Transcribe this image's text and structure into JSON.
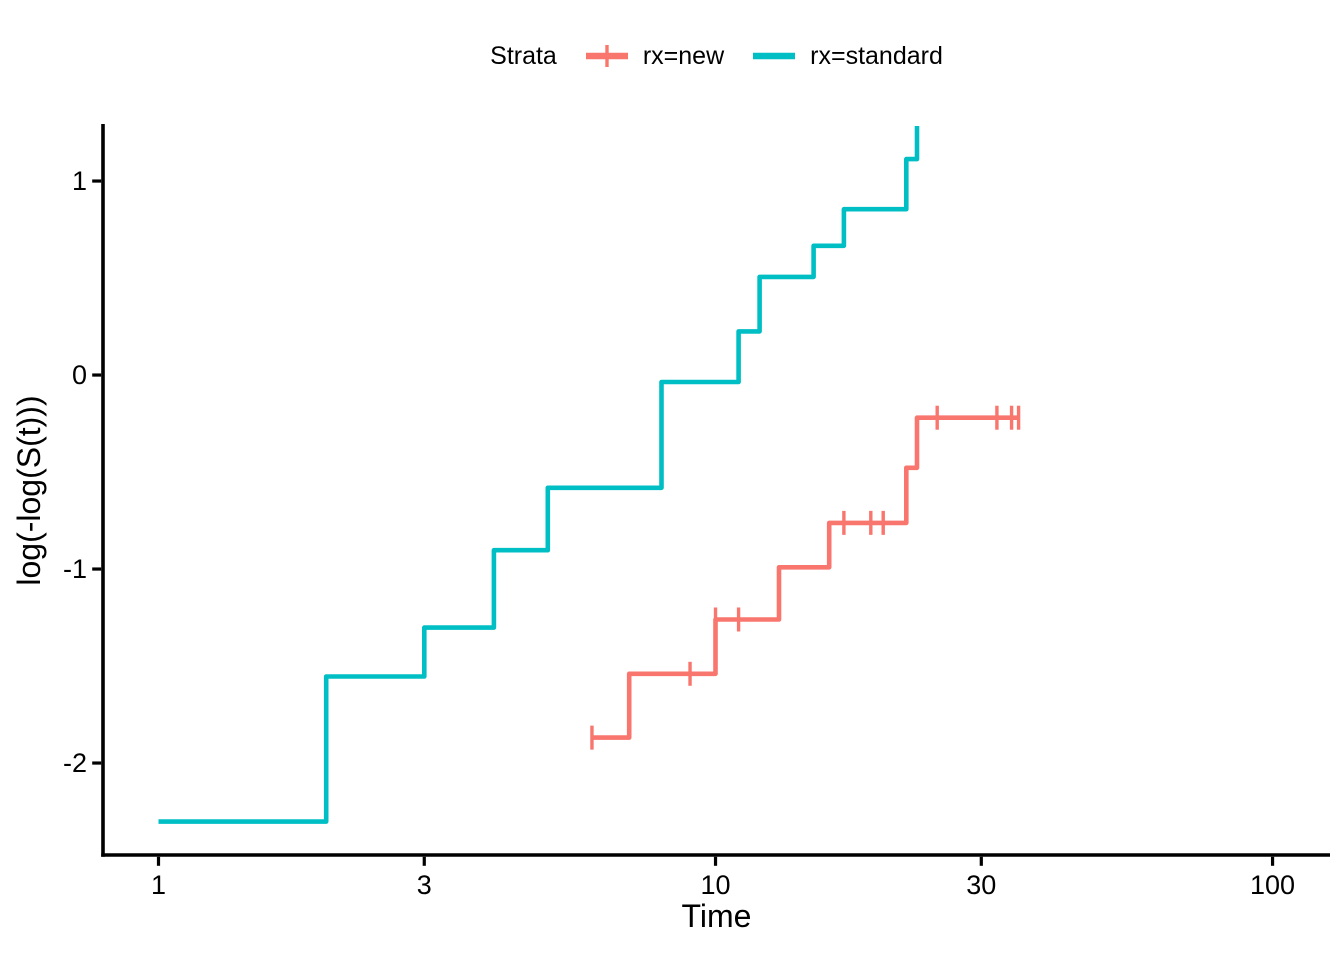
{
  "legend": {
    "title": "Strata",
    "items": [
      {
        "label": "rx=new",
        "color": "#F8766D",
        "marker": "line-with-plus"
      },
      {
        "label": "rx=standard",
        "color": "#00BFC4",
        "marker": "line"
      }
    ]
  },
  "chart_data": {
    "type": "line",
    "subtype": "kaplan-meier-step-cloglog",
    "title": "",
    "xlabel": "Time",
    "ylabel": "log(-log(S(t)))",
    "x_scale": "log10",
    "xlim": [
      0.795,
      126.8
    ],
    "ylim": [
      -2.474,
      1.294
    ],
    "x_ticks": [
      1,
      3,
      10,
      30,
      100
    ],
    "y_ticks": [
      -2,
      -1,
      0,
      1
    ],
    "grid": false,
    "legend_position": "top",
    "axis_color": "#000000",
    "series": [
      {
        "name": "rx=new",
        "color": "#F8766D",
        "steps": [
          [
            6,
            -1.869
          ],
          [
            7,
            -1.54
          ],
          [
            10,
            -1.26
          ],
          [
            13,
            -0.991
          ],
          [
            16,
            -0.762
          ],
          [
            22,
            -0.478
          ],
          [
            23,
            -0.22
          ]
        ],
        "end_time": 35,
        "rise_to_top_at_end": false,
        "censor_marks": [
          [
            6,
            -1.869
          ],
          [
            9,
            -1.54
          ],
          [
            10,
            -1.26
          ],
          [
            11,
            -1.26
          ],
          [
            17,
            -0.762
          ],
          [
            19,
            -0.762
          ],
          [
            20,
            -0.762
          ],
          [
            25,
            -0.22
          ],
          [
            32,
            -0.22
          ],
          [
            34,
            -0.22
          ],
          [
            35,
            -0.22
          ]
        ]
      },
      {
        "name": "rx=standard",
        "color": "#00BFC4",
        "steps": [
          [
            1,
            -2.302
          ],
          [
            2,
            -1.554
          ],
          [
            3,
            -1.302
          ],
          [
            4,
            -0.903
          ],
          [
            5,
            -0.581
          ],
          [
            8,
            -0.036
          ],
          [
            11,
            0.225
          ],
          [
            12,
            0.506
          ],
          [
            15,
            0.666
          ],
          [
            17,
            0.855
          ],
          [
            22,
            1.113
          ]
        ],
        "end_time": 23,
        "rise_to_top_at_end": true,
        "censor_marks": []
      }
    ]
  }
}
